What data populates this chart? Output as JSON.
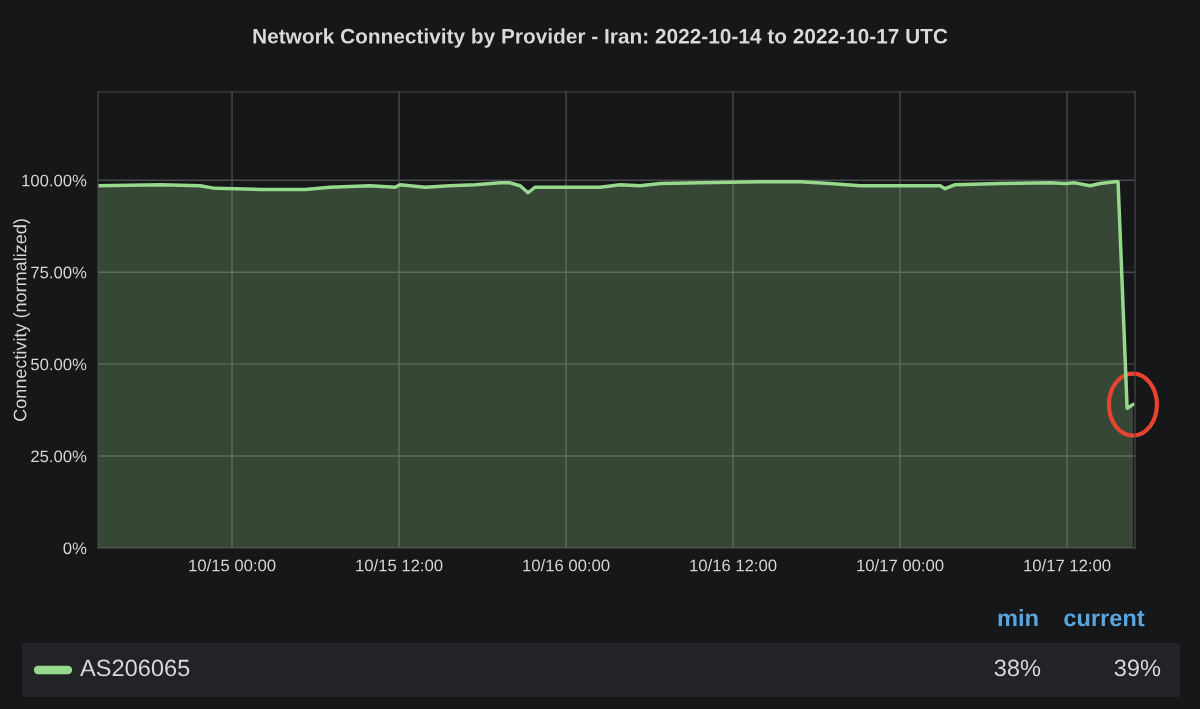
{
  "chart_data": {
    "type": "area",
    "title": "Network Connectivity by Provider - Iran: 2022-10-14 to 2022-10-17 UTC",
    "ylabel": "Connectivity (normalized)",
    "x": [
      "2022-10-14T14:22",
      "2022-10-14T18:50",
      "2022-10-14T21:42",
      "2022-10-14T22:47",
      "2022-10-15T02:01",
      "2022-10-15T05:15",
      "2022-10-15T07:02",
      "2022-10-15T09:55",
      "2022-10-15T11:43",
      "2022-10-15T12:04",
      "2022-10-15T13:52",
      "2022-10-15T15:40",
      "2022-10-15T17:28",
      "2022-10-15T19:16",
      "2022-10-15T19:59",
      "2022-10-15T20:42",
      "2022-10-15T21:16",
      "2022-10-15T21:46",
      "2022-10-15T23:34",
      "2022-10-16T01:01",
      "2022-10-16T02:27",
      "2022-10-16T03:53",
      "2022-10-16T05:19",
      "2022-10-16T06:46",
      "2022-10-16T09:38",
      "2022-10-16T13:56",
      "2022-10-16T16:49",
      "2022-10-16T18:58",
      "2022-10-16T21:08",
      "2022-10-17T00:00",
      "2022-10-17T02:53",
      "2022-10-17T03:14",
      "2022-10-17T03:58",
      "2022-10-17T07:11",
      "2022-10-17T10:47",
      "2022-10-17T11:52",
      "2022-10-17T12:35",
      "2022-10-17T13:40",
      "2022-10-17T14:22",
      "2022-10-17T15:27",
      "2022-10-17T15:40",
      "2022-10-17T16:19",
      "2022-10-17T16:44"
    ],
    "series": [
      {
        "name": "AS206065",
        "color": "#96d98d",
        "values": [
          98.5,
          98.8,
          98.5,
          97.8,
          97.5,
          97.5,
          98.1,
          98.5,
          98.1,
          98.8,
          98.1,
          98.5,
          98.8,
          99.3,
          99.3,
          98.5,
          96.6,
          98.1,
          98.1,
          98.1,
          98.1,
          98.8,
          98.5,
          99.1,
          99.3,
          99.6,
          99.6,
          99.1,
          98.5,
          98.5,
          98.5,
          97.7,
          98.8,
          99.1,
          99.3,
          99.1,
          99.3,
          98.5,
          99.1,
          99.6,
          99.6,
          38,
          39
        ]
      }
    ],
    "xlim": [
      "2022-10-14T14:22",
      "2022-10-17T16:53"
    ],
    "xticks": [
      {
        "value": "2022-10-15T00:00",
        "label": "10/15 00:00"
      },
      {
        "value": "2022-10-15T12:00",
        "label": "10/15 12:00"
      },
      {
        "value": "2022-10-16T00:00",
        "label": "10/16 00:00"
      },
      {
        "value": "2022-10-16T12:00",
        "label": "10/16 12:00"
      },
      {
        "value": "2022-10-17T00:00",
        "label": "10/17 00:00"
      },
      {
        "value": "2022-10-17T12:00",
        "label": "10/17 12:00"
      }
    ],
    "ylim": [
      0,
      124
    ],
    "yticks": [
      {
        "value": 0,
        "label": "0%"
      },
      {
        "value": 25,
        "label": "25.00%"
      },
      {
        "value": 50,
        "label": "50.00%"
      },
      {
        "value": 75,
        "label": "75.00%"
      },
      {
        "value": 100,
        "label": "100.00%"
      }
    ],
    "grid": true,
    "legend": "bottom",
    "annotations": [
      "min",
      "current",
      "38%",
      "39%"
    ]
  }
}
